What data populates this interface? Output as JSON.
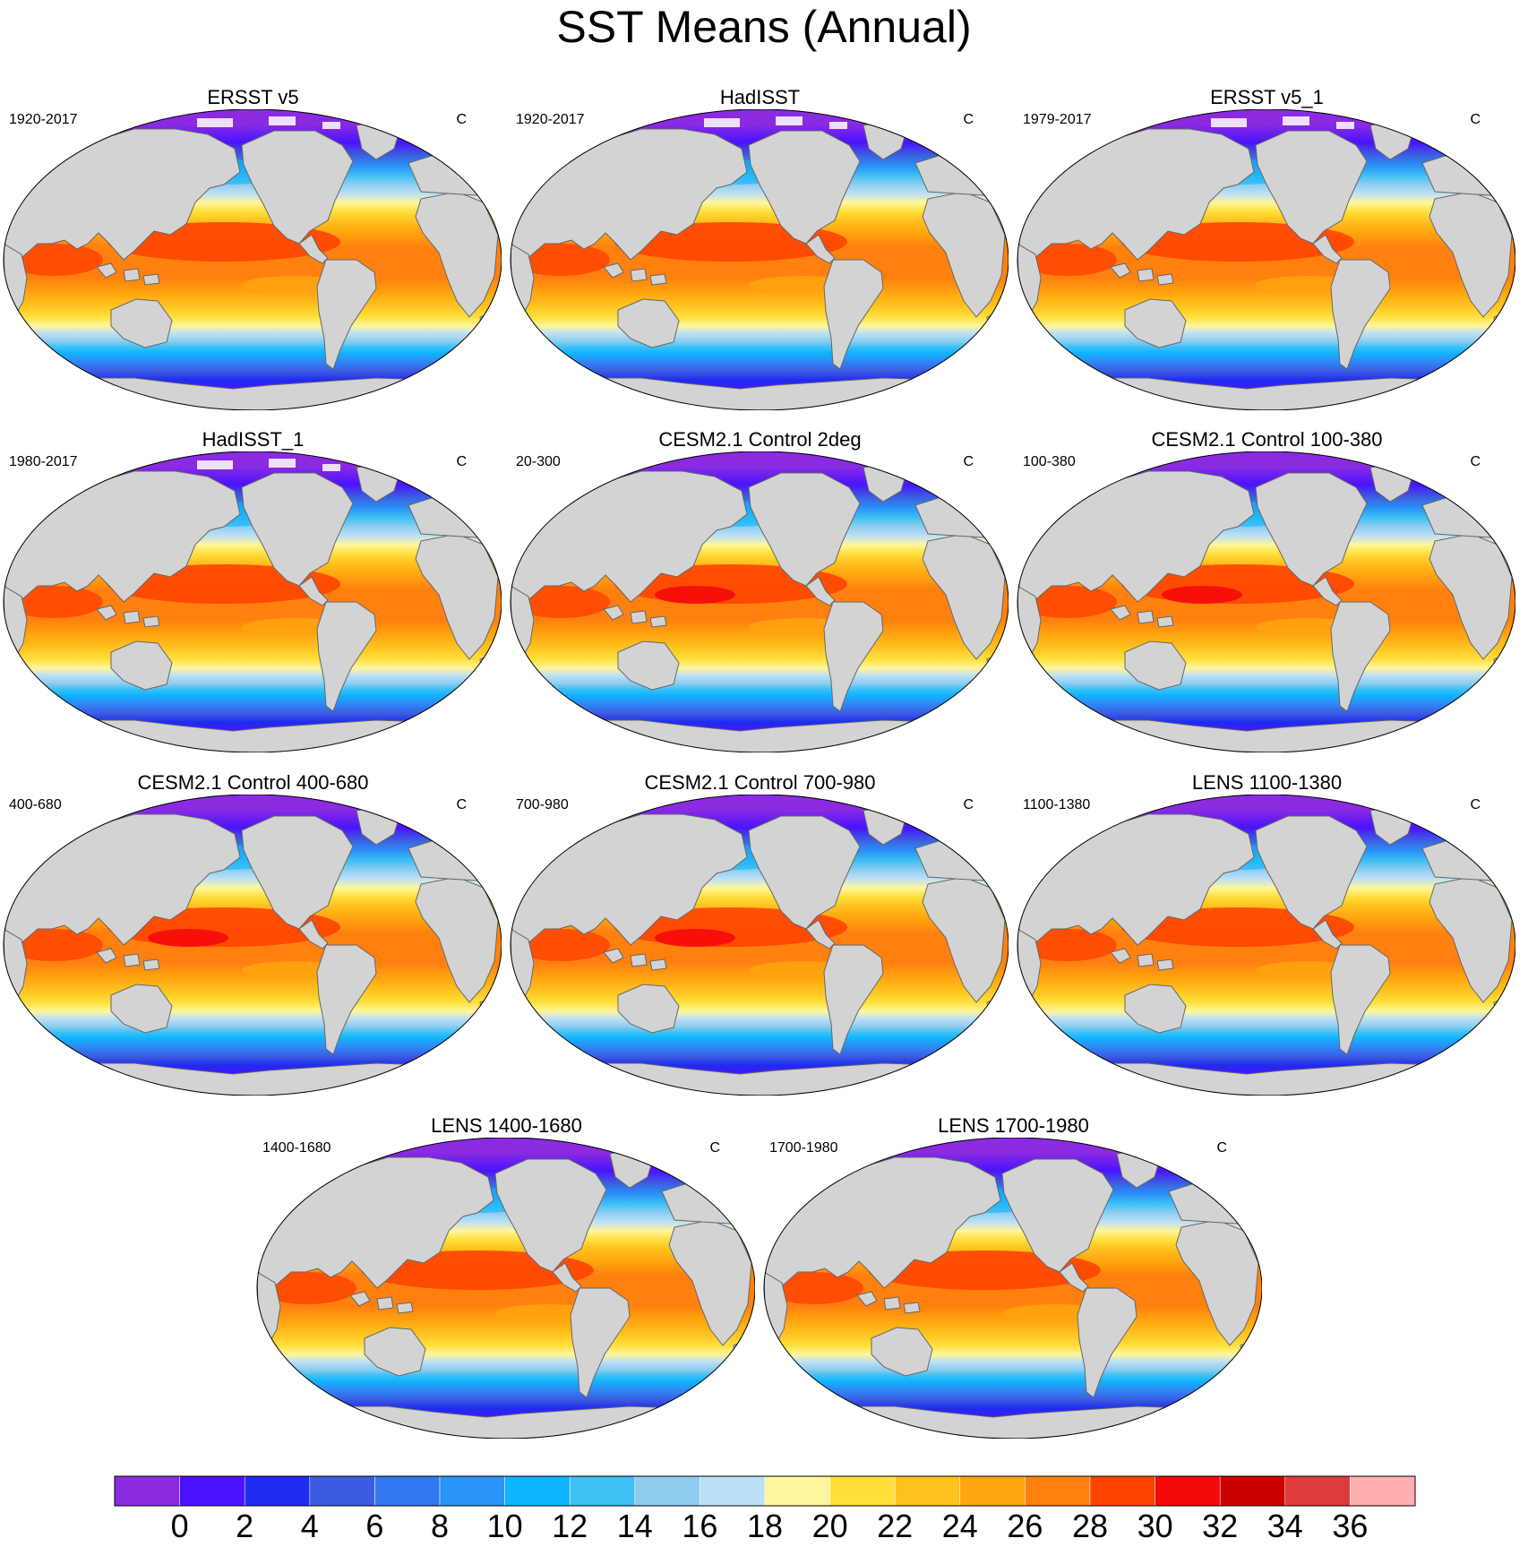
{
  "figure": {
    "title": "SST Means (Annual)"
  },
  "panels": [
    {
      "title": "ERSST v5",
      "period": "1920-2017",
      "unit": "C",
      "variant": "obs"
    },
    {
      "title": "HadISST",
      "period": "1920-2017",
      "unit": "C",
      "variant": "obs"
    },
    {
      "title": "ERSST v5_1",
      "period": "1979-2017",
      "unit": "C",
      "variant": "obs"
    },
    {
      "title": "HadISST_1",
      "period": "1980-2017",
      "unit": "C",
      "variant": "obs"
    },
    {
      "title": "CESM2.1 Control 2deg",
      "period": "20-300",
      "unit": "C",
      "variant": "model"
    },
    {
      "title": "CESM2.1 Control 100-380",
      "period": "100-380",
      "unit": "C",
      "variant": "model"
    },
    {
      "title": "CESM2.1 Control 400-680",
      "period": "400-680",
      "unit": "C",
      "variant": "model"
    },
    {
      "title": "CESM2.1 Control 700-980",
      "period": "700-980",
      "unit": "C",
      "variant": "model"
    },
    {
      "title": "LENS 1100-1380",
      "period": "1100-1380",
      "unit": "C",
      "variant": "lens"
    },
    {
      "title": "LENS 1400-1680",
      "period": "1400-1680",
      "unit": "C",
      "variant": "lens"
    },
    {
      "title": "LENS 1700-1980",
      "period": "1700-1980",
      "unit": "C",
      "variant": "lens"
    }
  ],
  "colorbar": {
    "labels": [
      "0",
      "2",
      "4",
      "6",
      "8",
      "10",
      "12",
      "14",
      "16",
      "18",
      "20",
      "22",
      "24",
      "26",
      "28",
      "30",
      "32",
      "34",
      "36"
    ],
    "colors": [
      "#8a2be2",
      "#4a12ff",
      "#1e2cf0",
      "#3c5ce0",
      "#3278f0",
      "#2a94f8",
      "#0db4ff",
      "#3ec0f5",
      "#8ecdf0",
      "#bce0f5",
      "#fff59c",
      "#ffdf3c",
      "#ffc11e",
      "#ffa50f",
      "#ff800f",
      "#ff4400",
      "#f50a0a",
      "#cc0000",
      "#dd3c3c",
      "#ffafaf"
    ]
  },
  "map_style": {
    "land_color": "#d3d3d3",
    "coast_color": "#666666",
    "missing_color": "#ffffff"
  }
}
